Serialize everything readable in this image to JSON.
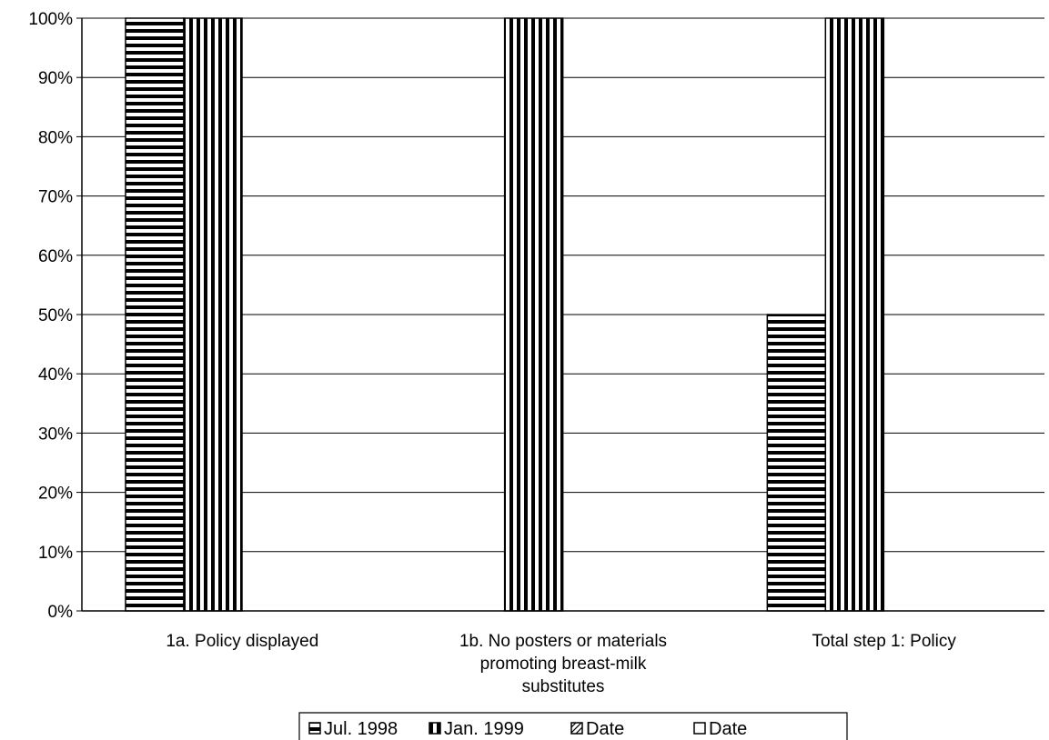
{
  "chart_data": {
    "type": "bar",
    "categories": [
      [
        "1a. Policy displayed"
      ],
      [
        "1b. No posters or materials",
        "promoting breast-milk",
        "substitutes"
      ],
      [
        "Total step 1: Policy"
      ]
    ],
    "series": [
      {
        "name": "Jul. 1998",
        "pattern": "horizontal-stripes",
        "values": [
          100,
          0,
          50
        ]
      },
      {
        "name": "Jan. 1999",
        "pattern": "vertical-stripes",
        "values": [
          100,
          100,
          100
        ]
      },
      {
        "name": "Date",
        "pattern": "diagonal-hatch",
        "values": [
          0,
          0,
          0
        ]
      },
      {
        "name": "Date",
        "pattern": "empty",
        "values": [
          0,
          0,
          0
        ]
      }
    ],
    "y_ticks": [
      "0%",
      "10%",
      "20%",
      "30%",
      "40%",
      "50%",
      "60%",
      "70%",
      "80%",
      "90%",
      "100%"
    ],
    "ylim": [
      0,
      100
    ],
    "grid": true,
    "legend_position": "bottom",
    "colors": {
      "bar_fill": "#ffffff",
      "stroke": "#000000"
    }
  }
}
